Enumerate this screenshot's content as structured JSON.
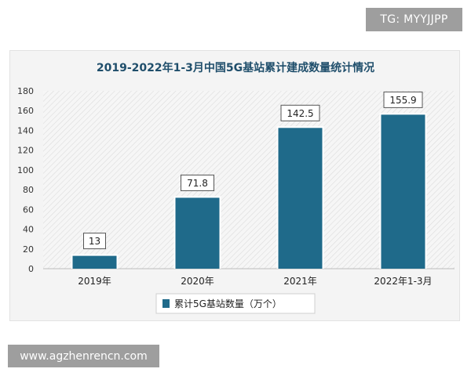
{
  "watermarks": {
    "top": "TG: MYYJJPP",
    "bottom": "www.agzhenrencn.com"
  },
  "colors": {
    "bar": "#1f6a8a",
    "title": "#1f4e6b",
    "card_bg": "#f4f4f4",
    "watermark_bg": "#9e9e9e"
  },
  "chart_data": {
    "type": "bar",
    "title": "2019-2022年1-3月中国5G基站累计建成数量统计情况",
    "categories": [
      "2019年",
      "2020年",
      "2021年",
      "2022年1-3月"
    ],
    "series": [
      {
        "name": "累计5G基站数量（万个）",
        "values": [
          13,
          71.8,
          142.5,
          155.9
        ]
      }
    ],
    "data_labels": [
      "13",
      "71.8",
      "142.5",
      "155.9"
    ],
    "yticks": [
      0,
      20,
      40,
      60,
      80,
      100,
      120,
      140,
      160,
      180
    ],
    "ylim": [
      0,
      180
    ],
    "grid": false,
    "plot_background": "hatched",
    "legend_position": "bottom"
  }
}
